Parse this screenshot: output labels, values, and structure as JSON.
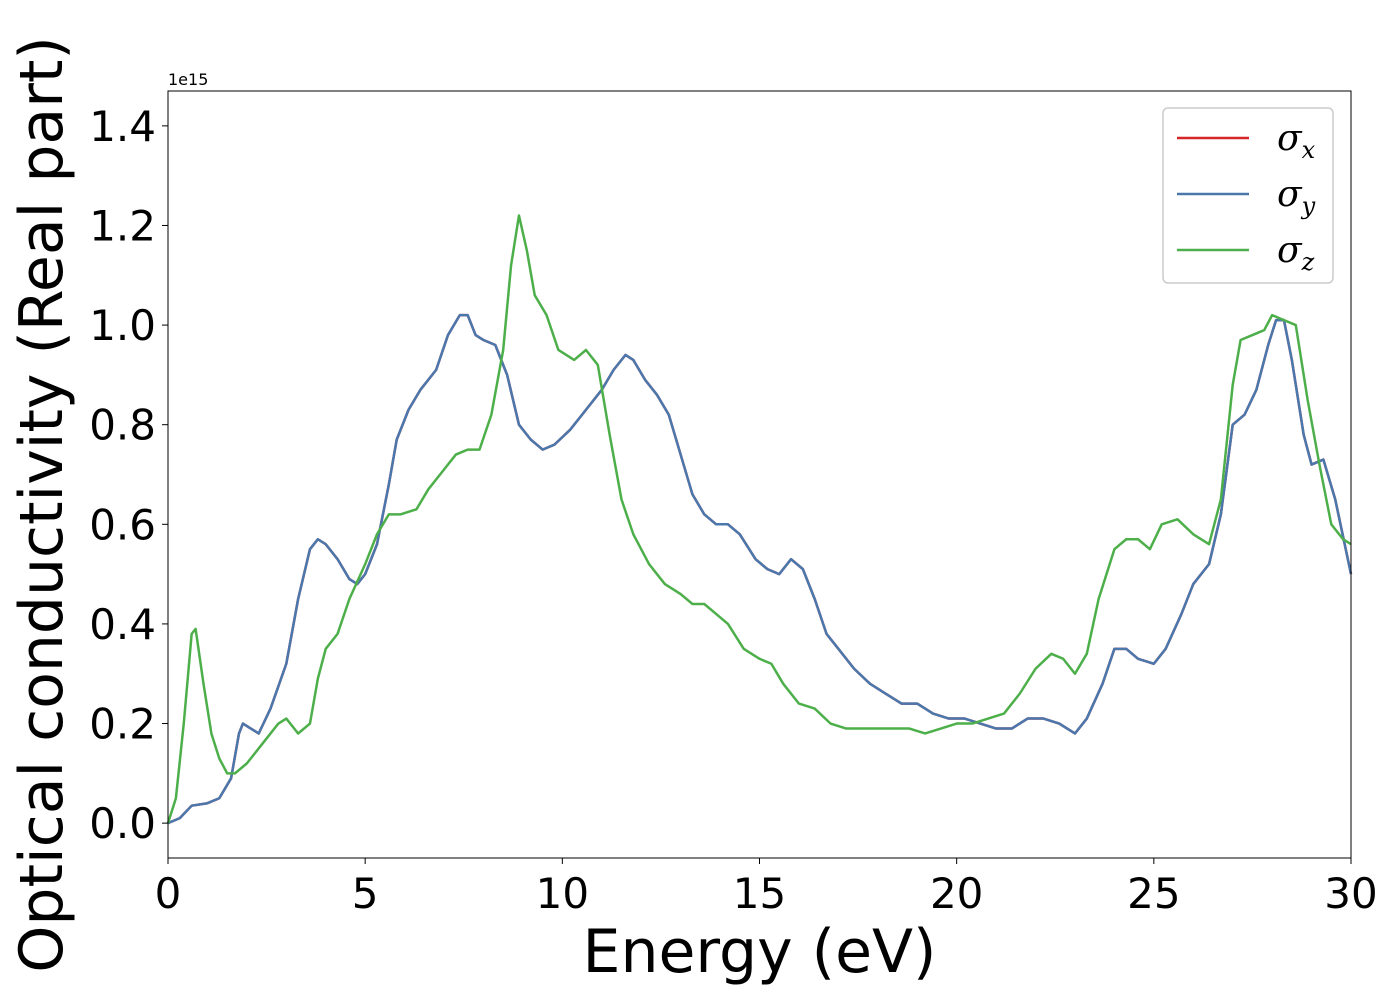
{
  "chart_data": {
    "type": "line",
    "title": "",
    "xlabel": "Energy (eV)",
    "ylabel": "Optical conductivity (Real part)",
    "offset_text": "1e15",
    "xlim": [
      0,
      30
    ],
    "ylim": [
      -0.07,
      1.47
    ],
    "x_ticks": [
      0,
      5,
      10,
      15,
      20,
      25,
      30
    ],
    "y_ticks": [
      0.0,
      0.2,
      0.4,
      0.6,
      0.8,
      1.0,
      1.2,
      1.4
    ],
    "y_tick_labels": [
      "0.0",
      "0.2",
      "0.4",
      "0.6",
      "0.8",
      "1.0",
      "1.2",
      "1.4"
    ],
    "x_tick_labels": [
      "0",
      "5",
      "10",
      "15",
      "20",
      "25",
      "30"
    ],
    "grid": false,
    "legend_position": "top-right",
    "series": [
      {
        "name": "σx",
        "symbol": "σ",
        "subscript": "x",
        "color": "#d62728",
        "points": [
          [
            0,
            0.0
          ],
          [
            0.3,
            0.01
          ],
          [
            0.6,
            0.035
          ],
          [
            1.0,
            0.04
          ],
          [
            1.3,
            0.05
          ],
          [
            1.6,
            0.09
          ],
          [
            1.8,
            0.18
          ],
          [
            1.9,
            0.2
          ],
          [
            2.1,
            0.19
          ],
          [
            2.3,
            0.18
          ],
          [
            2.6,
            0.23
          ],
          [
            3.0,
            0.32
          ],
          [
            3.3,
            0.45
          ],
          [
            3.6,
            0.55
          ],
          [
            3.8,
            0.57
          ],
          [
            4.0,
            0.56
          ],
          [
            4.3,
            0.53
          ],
          [
            4.6,
            0.49
          ],
          [
            4.8,
            0.48
          ],
          [
            5.0,
            0.5
          ],
          [
            5.3,
            0.56
          ],
          [
            5.6,
            0.68
          ],
          [
            5.8,
            0.77
          ],
          [
            6.1,
            0.83
          ],
          [
            6.4,
            0.87
          ],
          [
            6.8,
            0.91
          ],
          [
            7.1,
            0.98
          ],
          [
            7.4,
            1.02
          ],
          [
            7.6,
            1.02
          ],
          [
            7.8,
            0.98
          ],
          [
            8.0,
            0.97
          ],
          [
            8.3,
            0.96
          ],
          [
            8.6,
            0.9
          ],
          [
            8.9,
            0.8
          ],
          [
            9.2,
            0.77
          ],
          [
            9.5,
            0.75
          ],
          [
            9.8,
            0.76
          ],
          [
            10.2,
            0.79
          ],
          [
            10.6,
            0.83
          ],
          [
            11.0,
            0.87
          ],
          [
            11.3,
            0.91
          ],
          [
            11.6,
            0.94
          ],
          [
            11.8,
            0.93
          ],
          [
            12.1,
            0.89
          ],
          [
            12.4,
            0.86
          ],
          [
            12.7,
            0.82
          ],
          [
            13.0,
            0.74
          ],
          [
            13.3,
            0.66
          ],
          [
            13.6,
            0.62
          ],
          [
            13.9,
            0.6
          ],
          [
            14.2,
            0.6
          ],
          [
            14.5,
            0.58
          ],
          [
            14.9,
            0.53
          ],
          [
            15.2,
            0.51
          ],
          [
            15.5,
            0.5
          ],
          [
            15.8,
            0.53
          ],
          [
            16.1,
            0.51
          ],
          [
            16.4,
            0.45
          ],
          [
            16.7,
            0.38
          ],
          [
            17.0,
            0.35
          ],
          [
            17.4,
            0.31
          ],
          [
            17.8,
            0.28
          ],
          [
            18.2,
            0.26
          ],
          [
            18.6,
            0.24
          ],
          [
            19.0,
            0.24
          ],
          [
            19.4,
            0.22
          ],
          [
            19.8,
            0.21
          ],
          [
            20.2,
            0.21
          ],
          [
            20.6,
            0.2
          ],
          [
            21.0,
            0.19
          ],
          [
            21.4,
            0.19
          ],
          [
            21.8,
            0.21
          ],
          [
            22.2,
            0.21
          ],
          [
            22.6,
            0.2
          ],
          [
            23.0,
            0.18
          ],
          [
            23.3,
            0.21
          ],
          [
            23.7,
            0.28
          ],
          [
            24.0,
            0.35
          ],
          [
            24.3,
            0.35
          ],
          [
            24.6,
            0.33
          ],
          [
            25.0,
            0.32
          ],
          [
            25.3,
            0.35
          ],
          [
            25.7,
            0.42
          ],
          [
            26.0,
            0.48
          ],
          [
            26.4,
            0.52
          ],
          [
            26.7,
            0.62
          ],
          [
            27.0,
            0.8
          ],
          [
            27.3,
            0.82
          ],
          [
            27.6,
            0.87
          ],
          [
            27.9,
            0.96
          ],
          [
            28.1,
            1.01
          ],
          [
            28.3,
            1.01
          ],
          [
            28.5,
            0.93
          ],
          [
            28.8,
            0.78
          ],
          [
            29.0,
            0.72
          ],
          [
            29.3,
            0.73
          ],
          [
            29.6,
            0.65
          ],
          [
            30.0,
            0.5
          ]
        ]
      },
      {
        "name": "σy",
        "symbol": "σ",
        "subscript": "y",
        "color": "#4a78ad",
        "points": [
          [
            0,
            0.0
          ],
          [
            0.3,
            0.01
          ],
          [
            0.6,
            0.035
          ],
          [
            1.0,
            0.04
          ],
          [
            1.3,
            0.05
          ],
          [
            1.6,
            0.09
          ],
          [
            1.8,
            0.18
          ],
          [
            1.9,
            0.2
          ],
          [
            2.1,
            0.19
          ],
          [
            2.3,
            0.18
          ],
          [
            2.6,
            0.23
          ],
          [
            3.0,
            0.32
          ],
          [
            3.3,
            0.45
          ],
          [
            3.6,
            0.55
          ],
          [
            3.8,
            0.57
          ],
          [
            4.0,
            0.56
          ],
          [
            4.3,
            0.53
          ],
          [
            4.6,
            0.49
          ],
          [
            4.8,
            0.48
          ],
          [
            5.0,
            0.5
          ],
          [
            5.3,
            0.56
          ],
          [
            5.6,
            0.68
          ],
          [
            5.8,
            0.77
          ],
          [
            6.1,
            0.83
          ],
          [
            6.4,
            0.87
          ],
          [
            6.8,
            0.91
          ],
          [
            7.1,
            0.98
          ],
          [
            7.4,
            1.02
          ],
          [
            7.6,
            1.02
          ],
          [
            7.8,
            0.98
          ],
          [
            8.0,
            0.97
          ],
          [
            8.3,
            0.96
          ],
          [
            8.6,
            0.9
          ],
          [
            8.9,
            0.8
          ],
          [
            9.2,
            0.77
          ],
          [
            9.5,
            0.75
          ],
          [
            9.8,
            0.76
          ],
          [
            10.2,
            0.79
          ],
          [
            10.6,
            0.83
          ],
          [
            11.0,
            0.87
          ],
          [
            11.3,
            0.91
          ],
          [
            11.6,
            0.94
          ],
          [
            11.8,
            0.93
          ],
          [
            12.1,
            0.89
          ],
          [
            12.4,
            0.86
          ],
          [
            12.7,
            0.82
          ],
          [
            13.0,
            0.74
          ],
          [
            13.3,
            0.66
          ],
          [
            13.6,
            0.62
          ],
          [
            13.9,
            0.6
          ],
          [
            14.2,
            0.6
          ],
          [
            14.5,
            0.58
          ],
          [
            14.9,
            0.53
          ],
          [
            15.2,
            0.51
          ],
          [
            15.5,
            0.5
          ],
          [
            15.8,
            0.53
          ],
          [
            16.1,
            0.51
          ],
          [
            16.4,
            0.45
          ],
          [
            16.7,
            0.38
          ],
          [
            17.0,
            0.35
          ],
          [
            17.4,
            0.31
          ],
          [
            17.8,
            0.28
          ],
          [
            18.2,
            0.26
          ],
          [
            18.6,
            0.24
          ],
          [
            19.0,
            0.24
          ],
          [
            19.4,
            0.22
          ],
          [
            19.8,
            0.21
          ],
          [
            20.2,
            0.21
          ],
          [
            20.6,
            0.2
          ],
          [
            21.0,
            0.19
          ],
          [
            21.4,
            0.19
          ],
          [
            21.8,
            0.21
          ],
          [
            22.2,
            0.21
          ],
          [
            22.6,
            0.2
          ],
          [
            23.0,
            0.18
          ],
          [
            23.3,
            0.21
          ],
          [
            23.7,
            0.28
          ],
          [
            24.0,
            0.35
          ],
          [
            24.3,
            0.35
          ],
          [
            24.6,
            0.33
          ],
          [
            25.0,
            0.32
          ],
          [
            25.3,
            0.35
          ],
          [
            25.7,
            0.42
          ],
          [
            26.0,
            0.48
          ],
          [
            26.4,
            0.52
          ],
          [
            26.7,
            0.62
          ],
          [
            27.0,
            0.8
          ],
          [
            27.3,
            0.82
          ],
          [
            27.6,
            0.87
          ],
          [
            27.9,
            0.96
          ],
          [
            28.1,
            1.01
          ],
          [
            28.3,
            1.01
          ],
          [
            28.5,
            0.93
          ],
          [
            28.8,
            0.78
          ],
          [
            29.0,
            0.72
          ],
          [
            29.3,
            0.73
          ],
          [
            29.6,
            0.65
          ],
          [
            30.0,
            0.5
          ]
        ]
      },
      {
        "name": "σz",
        "symbol": "σ",
        "subscript": "z",
        "color": "#4daf4a",
        "points": [
          [
            0,
            0.0
          ],
          [
            0.2,
            0.05
          ],
          [
            0.4,
            0.2
          ],
          [
            0.6,
            0.38
          ],
          [
            0.7,
            0.39
          ],
          [
            0.9,
            0.28
          ],
          [
            1.1,
            0.18
          ],
          [
            1.3,
            0.13
          ],
          [
            1.5,
            0.1
          ],
          [
            1.7,
            0.1
          ],
          [
            2.0,
            0.12
          ],
          [
            2.4,
            0.16
          ],
          [
            2.8,
            0.2
          ],
          [
            3.0,
            0.21
          ],
          [
            3.3,
            0.18
          ],
          [
            3.6,
            0.2
          ],
          [
            3.8,
            0.29
          ],
          [
            4.0,
            0.35
          ],
          [
            4.3,
            0.38
          ],
          [
            4.6,
            0.45
          ],
          [
            5.0,
            0.52
          ],
          [
            5.3,
            0.58
          ],
          [
            5.6,
            0.62
          ],
          [
            5.9,
            0.62
          ],
          [
            6.3,
            0.63
          ],
          [
            6.6,
            0.67
          ],
          [
            7.0,
            0.71
          ],
          [
            7.3,
            0.74
          ],
          [
            7.6,
            0.75
          ],
          [
            7.9,
            0.75
          ],
          [
            8.2,
            0.82
          ],
          [
            8.5,
            0.95
          ],
          [
            8.7,
            1.12
          ],
          [
            8.9,
            1.22
          ],
          [
            9.1,
            1.15
          ],
          [
            9.3,
            1.06
          ],
          [
            9.6,
            1.02
          ],
          [
            9.9,
            0.95
          ],
          [
            10.3,
            0.93
          ],
          [
            10.6,
            0.95
          ],
          [
            10.9,
            0.92
          ],
          [
            11.2,
            0.78
          ],
          [
            11.5,
            0.65
          ],
          [
            11.8,
            0.58
          ],
          [
            12.2,
            0.52
          ],
          [
            12.6,
            0.48
          ],
          [
            13.0,
            0.46
          ],
          [
            13.3,
            0.44
          ],
          [
            13.6,
            0.44
          ],
          [
            13.9,
            0.42
          ],
          [
            14.2,
            0.4
          ],
          [
            14.6,
            0.35
          ],
          [
            15.0,
            0.33
          ],
          [
            15.3,
            0.32
          ],
          [
            15.6,
            0.28
          ],
          [
            16.0,
            0.24
          ],
          [
            16.4,
            0.23
          ],
          [
            16.8,
            0.2
          ],
          [
            17.2,
            0.19
          ],
          [
            17.6,
            0.19
          ],
          [
            18.0,
            0.19
          ],
          [
            18.4,
            0.19
          ],
          [
            18.8,
            0.19
          ],
          [
            19.2,
            0.18
          ],
          [
            19.6,
            0.19
          ],
          [
            20.0,
            0.2
          ],
          [
            20.4,
            0.2
          ],
          [
            20.8,
            0.21
          ],
          [
            21.2,
            0.22
          ],
          [
            21.6,
            0.26
          ],
          [
            22.0,
            0.31
          ],
          [
            22.4,
            0.34
          ],
          [
            22.7,
            0.33
          ],
          [
            23.0,
            0.3
          ],
          [
            23.3,
            0.34
          ],
          [
            23.6,
            0.45
          ],
          [
            24.0,
            0.55
          ],
          [
            24.3,
            0.57
          ],
          [
            24.6,
            0.57
          ],
          [
            24.9,
            0.55
          ],
          [
            25.2,
            0.6
          ],
          [
            25.6,
            0.61
          ],
          [
            26.0,
            0.58
          ],
          [
            26.4,
            0.56
          ],
          [
            26.7,
            0.65
          ],
          [
            27.0,
            0.88
          ],
          [
            27.2,
            0.97
          ],
          [
            27.5,
            0.98
          ],
          [
            27.8,
            0.99
          ],
          [
            28.0,
            1.02
          ],
          [
            28.3,
            1.01
          ],
          [
            28.6,
            1.0
          ],
          [
            28.9,
            0.85
          ],
          [
            29.2,
            0.72
          ],
          [
            29.5,
            0.6
          ],
          [
            29.8,
            0.57
          ],
          [
            30.0,
            0.56
          ]
        ]
      }
    ]
  }
}
